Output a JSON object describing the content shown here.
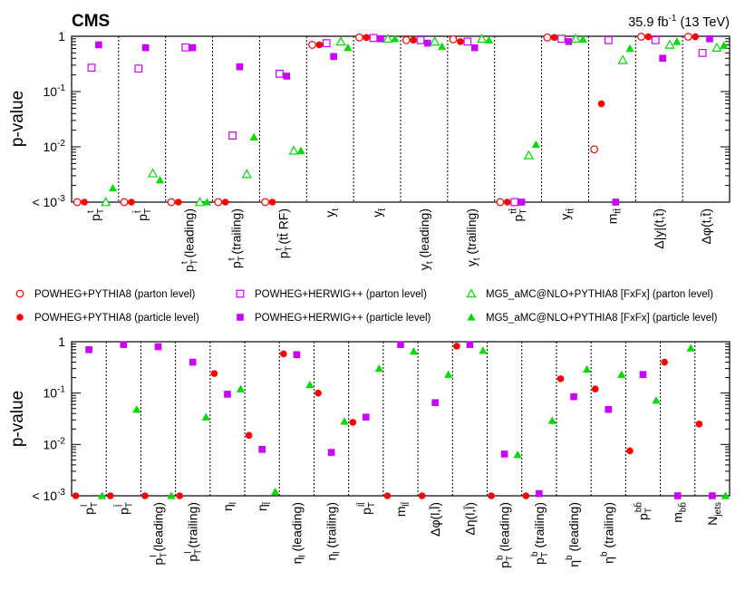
{
  "header": {
    "experiment": "CMS",
    "lumi": "35.9 fb",
    "lumi_sup": "-1",
    "energy": "(13 TeV)"
  },
  "legend": [
    {
      "label": "POWHEG+PYTHIA8 (parton level)",
      "marker": "circle",
      "filled": false,
      "color": "#ff0000"
    },
    {
      "label": "POWHEG+HERWIG++ (parton level)",
      "marker": "square",
      "filled": false,
      "color": "#cc00ff"
    },
    {
      "label": "MG5_aMC@NLO+PYTHIA8 [FxFx] (parton level)",
      "marker": "triangle",
      "filled": false,
      "color": "#00dd00"
    },
    {
      "label": "POWHEG+PYTHIA8 (particle level)",
      "marker": "circle",
      "filled": true,
      "color": "#ff0000"
    },
    {
      "label": "POWHEG+HERWIG++ (particle level)",
      "marker": "square",
      "filled": true,
      "color": "#cc00ff"
    },
    {
      "label": "MG5_aMC@NLO+PYTHIA8 [FxFx] (particle level)",
      "marker": "triangle",
      "filled": true,
      "color": "#00dd00"
    }
  ],
  "chart_data": [
    {
      "type": "scatter",
      "title": "",
      "ylabel": "p-value",
      "yscale": "log",
      "ylim": [
        0.001,
        1
      ],
      "yticks": [
        "< 10^-3",
        "10^-2",
        "10^-1",
        "1"
      ],
      "categories": [
        {
          "base": "p",
          "sup": "t",
          "sub": "T",
          "suffix": ""
        },
        {
          "base": "p",
          "sup": "t̄",
          "sub": "T",
          "suffix": ""
        },
        {
          "base": "p",
          "sup": "t",
          "sub": "T",
          "suffix": " (leading)"
        },
        {
          "base": "p",
          "sup": "t",
          "sub": "T",
          "suffix": " (trailing)"
        },
        {
          "base": "p",
          "sup": "t",
          "sub": "T",
          "suffix": " (tt̄ RF)"
        },
        {
          "base": "y",
          "sup": "",
          "sub": "t",
          "suffix": ""
        },
        {
          "base": "y",
          "sup": "",
          "sub": "t̄",
          "suffix": ""
        },
        {
          "base": "y",
          "sup": "",
          "sub": "t",
          "suffix": " (leading)"
        },
        {
          "base": "y",
          "sup": "",
          "sub": "t",
          "suffix": " (trailing)"
        },
        {
          "base": "p",
          "sup": "tt̄",
          "sub": "T",
          "suffix": ""
        },
        {
          "base": "y",
          "sup": "",
          "sub": "tt̄",
          "suffix": ""
        },
        {
          "base": "m",
          "sup": "",
          "sub": "tt̄",
          "suffix": ""
        },
        {
          "base": "Δ|y|(t,t̄)",
          "sup": "",
          "sub": "",
          "suffix": ""
        },
        {
          "base": "Δφ(t,t̄)",
          "sup": "",
          "sub": "",
          "suffix": ""
        }
      ],
      "series": [
        {
          "name": "POWHEG+PYTHIA8 (parton level)",
          "values": [
            0.001,
            0.001,
            0.001,
            0.001,
            0.001,
            0.7,
            0.95,
            0.85,
            0.88,
            0.001,
            0.95,
            0.009,
            0.98,
            0.98
          ]
        },
        {
          "name": "POWHEG+PYTHIA8 (particle level)",
          "values": [
            0.001,
            0.001,
            0.001,
            0.001,
            0.001,
            0.7,
            0.95,
            0.85,
            0.8,
            0.001,
            0.95,
            0.06,
            0.98,
            0.98
          ]
        },
        {
          "name": "POWHEG+HERWIG++ (parton level)",
          "values": [
            0.27,
            0.26,
            0.63,
            0.016,
            0.21,
            0.75,
            0.93,
            0.85,
            0.8,
            0.001,
            0.9,
            0.85,
            0.85,
            0.5
          ]
        },
        {
          "name": "POWHEG+HERWIG++ (particle level)",
          "values": [
            0.7,
            0.62,
            0.62,
            0.28,
            0.19,
            0.43,
            0.9,
            0.75,
            0.62,
            0.001,
            0.8,
            0.001,
            0.4,
            0.9
          ]
        },
        {
          "name": "MG5_aMC@NLO+PYTHIA8 [FxFx] (parton level)",
          "values": [
            0.001,
            0.0033,
            0.001,
            0.0032,
            0.0085,
            0.8,
            0.9,
            0.8,
            0.9,
            0.007,
            0.9,
            0.37,
            0.7,
            0.62
          ]
        },
        {
          "name": "MG5_aMC@NLO+PYTHIA8 [FxFx] (particle level)",
          "values": [
            0.0018,
            0.0025,
            0.001,
            0.015,
            0.0085,
            0.62,
            0.9,
            0.65,
            0.85,
            0.011,
            0.88,
            0.6,
            0.8,
            0.68
          ]
        }
      ]
    },
    {
      "type": "scatter",
      "title": "",
      "ylabel": "p-value",
      "yscale": "log",
      "ylim": [
        0.001,
        1
      ],
      "yticks": [
        "< 10^-3",
        "10^-2",
        "10^-1",
        "1"
      ],
      "categories": [
        {
          "base": "p",
          "sup": "l",
          "sub": "T",
          "suffix": ""
        },
        {
          "base": "p",
          "sup": "l̄",
          "sub": "T",
          "suffix": ""
        },
        {
          "base": "p",
          "sup": "l",
          "sub": "T",
          "suffix": " (leading)"
        },
        {
          "base": "p",
          "sup": "l",
          "sub": "T",
          "suffix": " (trailing)"
        },
        {
          "base": "η",
          "sup": "",
          "sub": "l",
          "suffix": ""
        },
        {
          "base": "η",
          "sup": "",
          "sub": "l̄",
          "suffix": ""
        },
        {
          "base": "η",
          "sup": "",
          "sub": "l",
          "suffix": " (leading)"
        },
        {
          "base": "η",
          "sup": "",
          "sub": "l",
          "suffix": " (trailing)"
        },
        {
          "base": "p",
          "sup": "ll̄",
          "sub": "T",
          "suffix": ""
        },
        {
          "base": "m",
          "sup": "",
          "sub": "ll̄",
          "suffix": ""
        },
        {
          "base": "Δφ(l,l̄)",
          "sup": "",
          "sub": "",
          "suffix": ""
        },
        {
          "base": "Δη(l,l̄)",
          "sup": "",
          "sub": "",
          "suffix": ""
        },
        {
          "base": "p",
          "sup": "b",
          "sub": "T",
          "suffix": " (leading)"
        },
        {
          "base": "p",
          "sup": "b",
          "sub": "T",
          "suffix": " (trailing)"
        },
        {
          "base": "η",
          "sup": "b",
          "sub": "",
          "suffix": " (leading)"
        },
        {
          "base": "η",
          "sup": "b",
          "sub": "",
          "suffix": " (trailing)"
        },
        {
          "base": "p",
          "sup": "bb̄",
          "sub": "T",
          "suffix": ""
        },
        {
          "base": "m",
          "sup": "",
          "sub": "bb̄",
          "suffix": ""
        },
        {
          "base": "N",
          "sup": "",
          "sub": "jets",
          "suffix": ""
        }
      ],
      "series": [
        {
          "name": "POWHEG+PYTHIA8 (particle level)",
          "values": [
            0.001,
            0.001,
            0.001,
            0.001,
            0.24,
            0.015,
            0.58,
            0.1,
            0.027,
            0.001,
            0.001,
            0.82,
            0.001,
            0.001,
            0.19,
            0.12,
            0.0075,
            0.4,
            0.025
          ]
        },
        {
          "name": "POWHEG+HERWIG++ (particle level)",
          "values": [
            0.7,
            0.88,
            0.8,
            0.4,
            0.095,
            0.008,
            0.56,
            0.007,
            0.034,
            0.88,
            0.065,
            0.88,
            0.0065,
            0.0011,
            0.085,
            0.048,
            0.23,
            0.001,
            0.001
          ]
        },
        {
          "name": "MG5_aMC@NLO+PYTHIA8 [FxFx] (particle level)",
          "values": [
            0.001,
            0.048,
            0.001,
            0.034,
            0.12,
            0.0012,
            0.145,
            0.028,
            0.3,
            0.65,
            0.23,
            0.67,
            0.0063,
            0.029,
            0.29,
            0.23,
            0.072,
            0.75,
            0.001
          ]
        }
      ]
    }
  ]
}
